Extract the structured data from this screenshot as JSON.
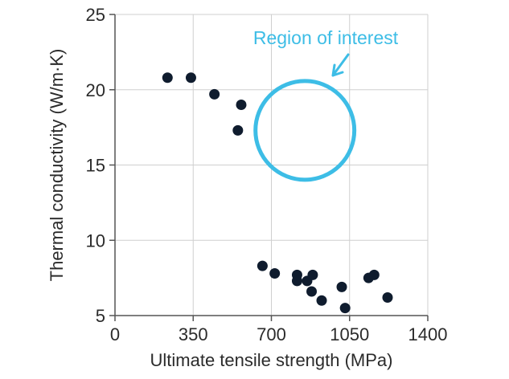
{
  "chart_data": {
    "type": "scatter",
    "title": "",
    "xlabel": "Ultimate tensile strength (MPa)",
    "ylabel": "Thermal conductivity (W/m·K)",
    "xlim": [
      0,
      1400
    ],
    "ylim": [
      5,
      25
    ],
    "xticks": [
      0,
      350,
      700,
      1050,
      1400
    ],
    "yticks": [
      5,
      10,
      15,
      20,
      25
    ],
    "grid": true,
    "points": [
      {
        "x": 235,
        "y": 20.8
      },
      {
        "x": 340,
        "y": 20.8
      },
      {
        "x": 445,
        "y": 19.7
      },
      {
        "x": 565,
        "y": 19.0
      },
      {
        "x": 550,
        "y": 17.3
      },
      {
        "x": 660,
        "y": 8.3
      },
      {
        "x": 715,
        "y": 7.8
      },
      {
        "x": 815,
        "y": 7.7
      },
      {
        "x": 815,
        "y": 7.3
      },
      {
        "x": 860,
        "y": 7.3
      },
      {
        "x": 885,
        "y": 7.7
      },
      {
        "x": 880,
        "y": 6.6
      },
      {
        "x": 925,
        "y": 6.0
      },
      {
        "x": 1015,
        "y": 6.9
      },
      {
        "x": 1030,
        "y": 5.5
      },
      {
        "x": 1135,
        "y": 7.5
      },
      {
        "x": 1160,
        "y": 7.7
      },
      {
        "x": 1220,
        "y": 6.2
      }
    ],
    "point_color": "#0f1c2e",
    "annotation": {
      "text": "Region of interest",
      "color": "#3dbde6",
      "circle_center": {
        "x": 850,
        "y": 17.3
      },
      "circle_radius": {
        "x": 240,
        "y": 3.0
      }
    }
  }
}
